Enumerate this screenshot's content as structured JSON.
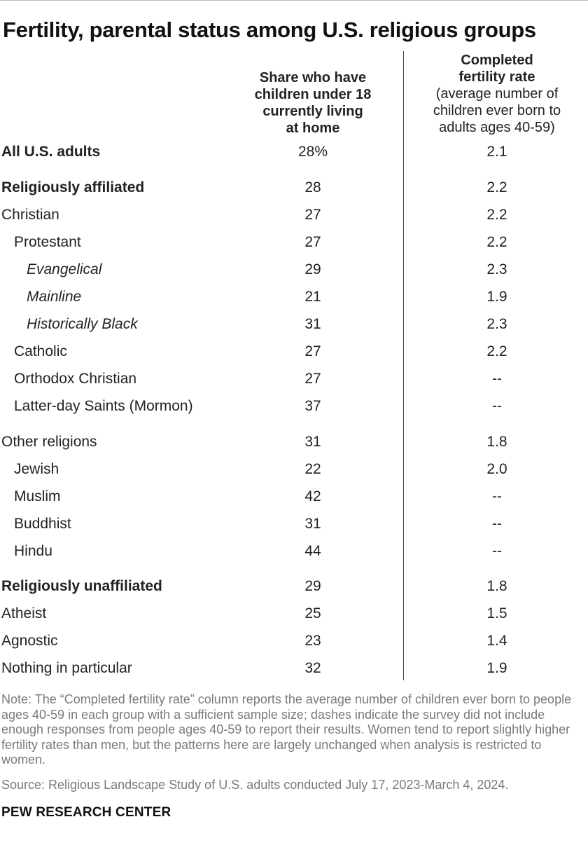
{
  "title": "Fertility, parental status among U.S. religious groups",
  "chart_data": {
    "type": "table",
    "columns": [
      {
        "key": "share_children",
        "header_lines": [
          "Share who have",
          "children under 18",
          "currently living",
          "at home"
        ]
      },
      {
        "key": "fertility_rate",
        "header_bold_lines": [
          "Completed",
          "fertility rate"
        ],
        "header_normal_lines": [
          "(average number of",
          "children ever born to",
          "adults ages 40-59)"
        ]
      }
    ],
    "rows": [
      {
        "label": "All U.S. adults",
        "style": "bold",
        "share": "28%",
        "fertility": "2.1"
      },
      {
        "label": "Religiously affiliated",
        "style": "bold",
        "share": "28",
        "fertility": "2.2"
      },
      {
        "label": "Christian",
        "style": "level0",
        "share": "27",
        "fertility": "2.2"
      },
      {
        "label": "Protestant",
        "style": "level1",
        "share": "27",
        "fertility": "2.2"
      },
      {
        "label": "Evangelical",
        "style": "level2",
        "share": "29",
        "fertility": "2.3"
      },
      {
        "label": "Mainline",
        "style": "level2",
        "share": "21",
        "fertility": "1.9"
      },
      {
        "label": "Historically Black",
        "style": "level2",
        "share": "31",
        "fertility": "2.3"
      },
      {
        "label": "Catholic",
        "style": "level1",
        "share": "27",
        "fertility": "2.2"
      },
      {
        "label": "Orthodox Christian",
        "style": "level1",
        "share": "27",
        "fertility": "--"
      },
      {
        "label": "Latter-day Saints (Mormon)",
        "style": "level1",
        "share": "37",
        "fertility": "--"
      },
      {
        "label": "Other religions",
        "style": "level0",
        "share": "31",
        "fertility": "1.8"
      },
      {
        "label": "Jewish",
        "style": "level1",
        "share": "22",
        "fertility": "2.0"
      },
      {
        "label": "Muslim",
        "style": "level1",
        "share": "42",
        "fertility": "--"
      },
      {
        "label": "Buddhist",
        "style": "level1",
        "share": "31",
        "fertility": "--"
      },
      {
        "label": "Hindu",
        "style": "level1",
        "share": "44",
        "fertility": "--"
      },
      {
        "label": "Religiously unaffiliated",
        "style": "bold",
        "share": "29",
        "fertility": "1.8"
      },
      {
        "label": "Atheist",
        "style": "level0",
        "share": "25",
        "fertility": "1.5"
      },
      {
        "label": "Agnostic",
        "style": "level0",
        "share": "23",
        "fertility": "1.4"
      },
      {
        "label": "Nothing in particular",
        "style": "level0",
        "share": "32",
        "fertility": "1.9"
      }
    ]
  },
  "note": "Note: The “Completed fertility rate” column reports the average number of children ever born to people ages 40-59 in each group with a sufficient sample size; dashes indicate the survey did not include enough responses from people ages 40-59 to report their results. Women tend to report slightly higher fertility rates than men, but the patterns here are largely unchanged when analysis is restricted to women.",
  "source": "Source: Religious Landscape Study of U.S. adults conducted July 17, 2023-March 4, 2024.",
  "brand": "PEW RESEARCH CENTER"
}
